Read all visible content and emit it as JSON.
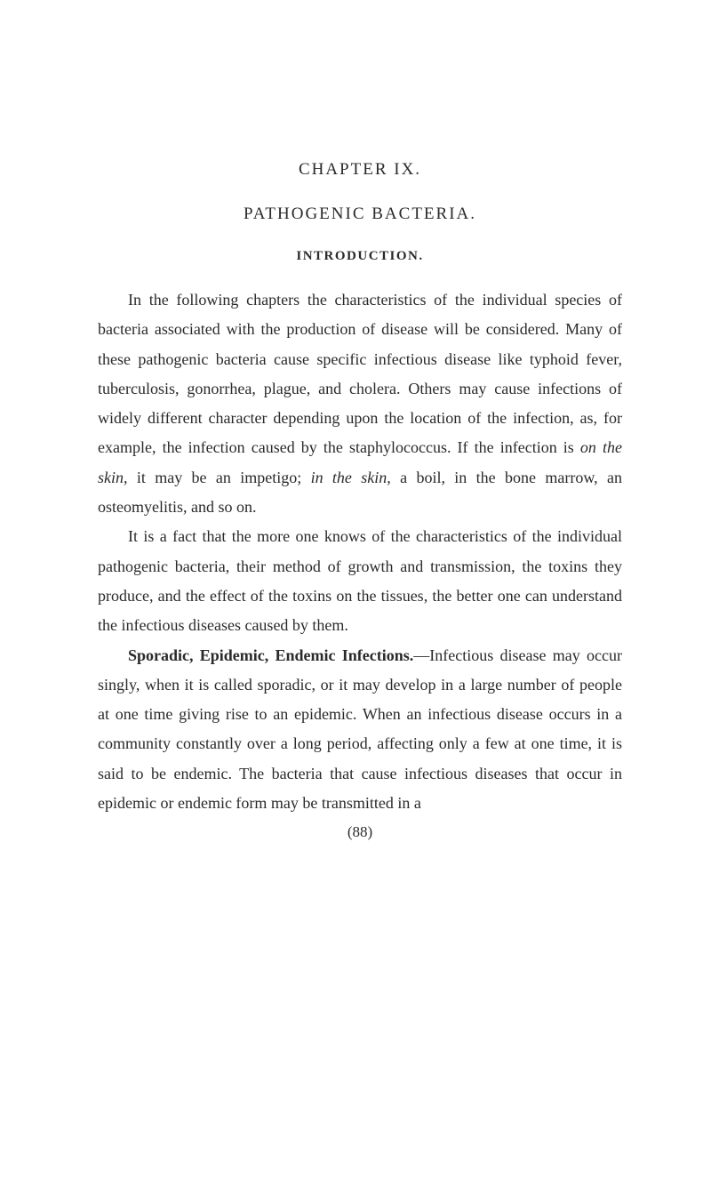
{
  "chapter": "CHAPTER IX.",
  "title": "PATHOGENIC BACTERIA.",
  "section": "INTRODUCTION.",
  "para1_pre": "In the following chapters the characteristics of the individual species of bacteria associated with the production of disease will be considered. Many of these pathogenic bacteria cause specific infectious disease like typhoid fever, tuberculosis, gonorrhea, plague, and cholera. Others may cause infections of widely different character depending upon the location of the infection, as, for example, the infection caused by the staphylococcus. If the infection is ",
  "para1_italic1": "on the skin,",
  "para1_mid": " it may be an impetigo; ",
  "para1_italic2": "in the skin,",
  "para1_post": " a boil, in the bone marrow, an osteomyelitis, and so on.",
  "para2": "It is a fact that the more one knows of the characteristics of the individual pathogenic bacteria, their method of growth and transmission, the toxins they produce, and the effect of the toxins on the tissues, the better one can understand the infectious diseases caused by them.",
  "para3_bold": "Sporadic, Epidemic, Endemic Infections.",
  "para3_rest": "—Infectious disease may occur singly, when it is called sporadic, or it may develop in a large number of people at one time giving rise to an epidemic. When an infectious disease occurs in a community constantly over a long period, affecting only a few at one time, it is said to be endemic. The bacteria that cause infectious diseases that occur in epidemic or endemic form may be transmitted in a",
  "page_number": "(88)",
  "colors": {
    "background": "#ffffff",
    "text": "#2a2a2a"
  },
  "typography": {
    "heading_fontsize": 19,
    "section_fontsize": 15,
    "body_fontsize": 18,
    "line_height": 1.85
  }
}
